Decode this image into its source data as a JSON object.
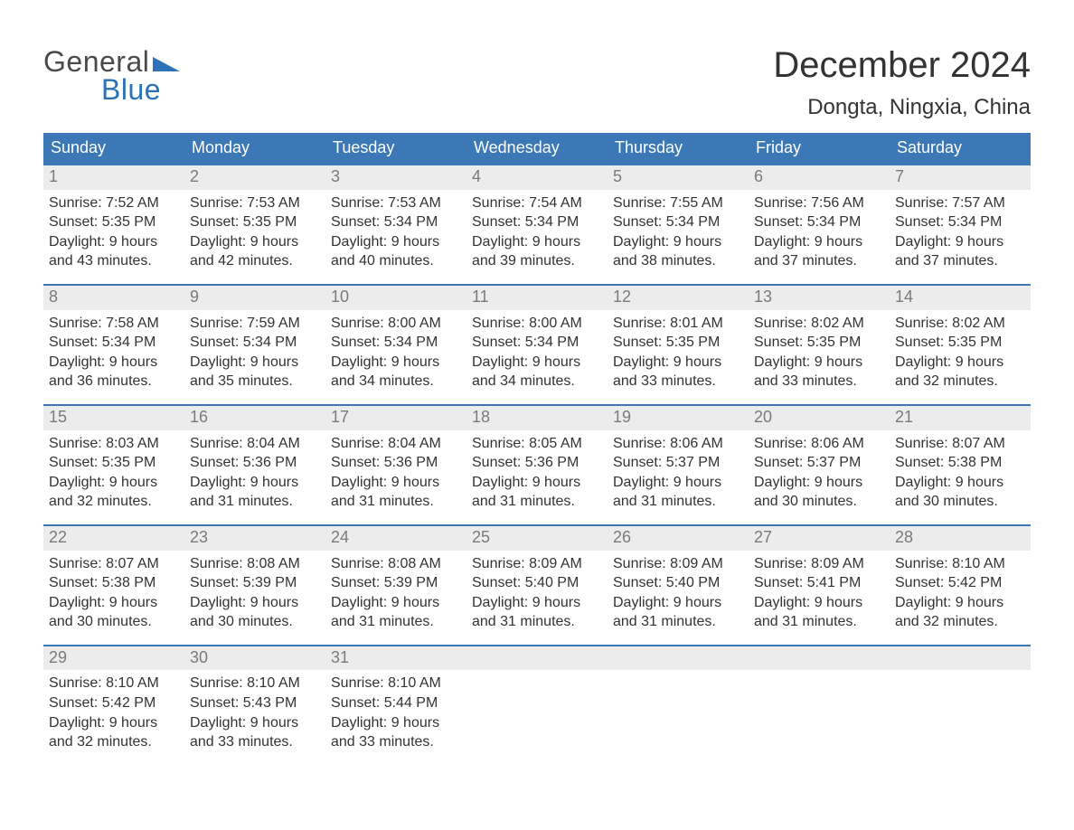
{
  "logo": {
    "word1": "General",
    "word2": "Blue",
    "accent_color": "#2d72b8",
    "text_color": "#4a4a4a"
  },
  "title": "December 2024",
  "location": "Dongta, Ningxia, China",
  "colors": {
    "header_bg": "#3b78b5",
    "header_text": "#ffffff",
    "daynum_bg": "#ececec",
    "daynum_text": "#7a7a7a",
    "body_text": "#333333",
    "row_border": "#3b78b5",
    "page_bg": "#ffffff"
  },
  "typography": {
    "title_fontsize": 40,
    "location_fontsize": 24,
    "weekday_fontsize": 18,
    "daynum_fontsize": 18,
    "body_fontsize": 16
  },
  "weekdays": [
    "Sunday",
    "Monday",
    "Tuesday",
    "Wednesday",
    "Thursday",
    "Friday",
    "Saturday"
  ],
  "labels": {
    "sunrise": "Sunrise",
    "sunset": "Sunset",
    "daylight": "Daylight"
  },
  "weeks": [
    [
      {
        "n": "1",
        "sunrise": "7:52 AM",
        "sunset": "5:35 PM",
        "daylight": "9 hours and 43 minutes."
      },
      {
        "n": "2",
        "sunrise": "7:53 AM",
        "sunset": "5:35 PM",
        "daylight": "9 hours and 42 minutes."
      },
      {
        "n": "3",
        "sunrise": "7:53 AM",
        "sunset": "5:34 PM",
        "daylight": "9 hours and 40 minutes."
      },
      {
        "n": "4",
        "sunrise": "7:54 AM",
        "sunset": "5:34 PM",
        "daylight": "9 hours and 39 minutes."
      },
      {
        "n": "5",
        "sunrise": "7:55 AM",
        "sunset": "5:34 PM",
        "daylight": "9 hours and 38 minutes."
      },
      {
        "n": "6",
        "sunrise": "7:56 AM",
        "sunset": "5:34 PM",
        "daylight": "9 hours and 37 minutes."
      },
      {
        "n": "7",
        "sunrise": "7:57 AM",
        "sunset": "5:34 PM",
        "daylight": "9 hours and 37 minutes."
      }
    ],
    [
      {
        "n": "8",
        "sunrise": "7:58 AM",
        "sunset": "5:34 PM",
        "daylight": "9 hours and 36 minutes."
      },
      {
        "n": "9",
        "sunrise": "7:59 AM",
        "sunset": "5:34 PM",
        "daylight": "9 hours and 35 minutes."
      },
      {
        "n": "10",
        "sunrise": "8:00 AM",
        "sunset": "5:34 PM",
        "daylight": "9 hours and 34 minutes."
      },
      {
        "n": "11",
        "sunrise": "8:00 AM",
        "sunset": "5:34 PM",
        "daylight": "9 hours and 34 minutes."
      },
      {
        "n": "12",
        "sunrise": "8:01 AM",
        "sunset": "5:35 PM",
        "daylight": "9 hours and 33 minutes."
      },
      {
        "n": "13",
        "sunrise": "8:02 AM",
        "sunset": "5:35 PM",
        "daylight": "9 hours and 33 minutes."
      },
      {
        "n": "14",
        "sunrise": "8:02 AM",
        "sunset": "5:35 PM",
        "daylight": "9 hours and 32 minutes."
      }
    ],
    [
      {
        "n": "15",
        "sunrise": "8:03 AM",
        "sunset": "5:35 PM",
        "daylight": "9 hours and 32 minutes."
      },
      {
        "n": "16",
        "sunrise": "8:04 AM",
        "sunset": "5:36 PM",
        "daylight": "9 hours and 31 minutes."
      },
      {
        "n": "17",
        "sunrise": "8:04 AM",
        "sunset": "5:36 PM",
        "daylight": "9 hours and 31 minutes."
      },
      {
        "n": "18",
        "sunrise": "8:05 AM",
        "sunset": "5:36 PM",
        "daylight": "9 hours and 31 minutes."
      },
      {
        "n": "19",
        "sunrise": "8:06 AM",
        "sunset": "5:37 PM",
        "daylight": "9 hours and 31 minutes."
      },
      {
        "n": "20",
        "sunrise": "8:06 AM",
        "sunset": "5:37 PM",
        "daylight": "9 hours and 30 minutes."
      },
      {
        "n": "21",
        "sunrise": "8:07 AM",
        "sunset": "5:38 PM",
        "daylight": "9 hours and 30 minutes."
      }
    ],
    [
      {
        "n": "22",
        "sunrise": "8:07 AM",
        "sunset": "5:38 PM",
        "daylight": "9 hours and 30 minutes."
      },
      {
        "n": "23",
        "sunrise": "8:08 AM",
        "sunset": "5:39 PM",
        "daylight": "9 hours and 30 minutes."
      },
      {
        "n": "24",
        "sunrise": "8:08 AM",
        "sunset": "5:39 PM",
        "daylight": "9 hours and 31 minutes."
      },
      {
        "n": "25",
        "sunrise": "8:09 AM",
        "sunset": "5:40 PM",
        "daylight": "9 hours and 31 minutes."
      },
      {
        "n": "26",
        "sunrise": "8:09 AM",
        "sunset": "5:40 PM",
        "daylight": "9 hours and 31 minutes."
      },
      {
        "n": "27",
        "sunrise": "8:09 AM",
        "sunset": "5:41 PM",
        "daylight": "9 hours and 31 minutes."
      },
      {
        "n": "28",
        "sunrise": "8:10 AM",
        "sunset": "5:42 PM",
        "daylight": "9 hours and 32 minutes."
      }
    ],
    [
      {
        "n": "29",
        "sunrise": "8:10 AM",
        "sunset": "5:42 PM",
        "daylight": "9 hours and 32 minutes."
      },
      {
        "n": "30",
        "sunrise": "8:10 AM",
        "sunset": "5:43 PM",
        "daylight": "9 hours and 33 minutes."
      },
      {
        "n": "31",
        "sunrise": "8:10 AM",
        "sunset": "5:44 PM",
        "daylight": "9 hours and 33 minutes."
      },
      {
        "empty": true
      },
      {
        "empty": true
      },
      {
        "empty": true
      },
      {
        "empty": true
      }
    ]
  ]
}
